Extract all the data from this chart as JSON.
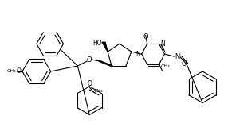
{
  "bg_color": "#ffffff",
  "line_color": "#000000",
  "lw": 0.8,
  "figsize": [
    2.86,
    1.65
  ],
  "dpi": 100,
  "xlim": [
    0,
    286
  ],
  "ylim": [
    0,
    165
  ]
}
